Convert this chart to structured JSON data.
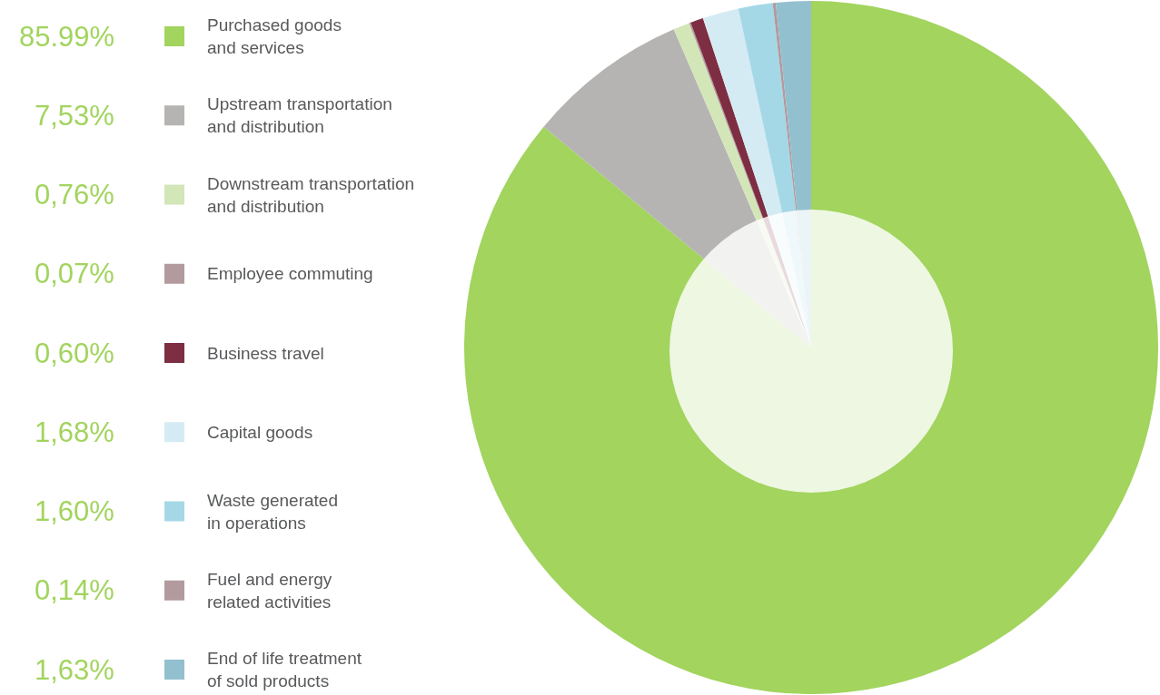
{
  "chart_data": {
    "type": "pie",
    "categories": [
      "Purchased goods\nand services",
      "Upstream transportation\nand distribution",
      "Downstream transportation\nand distribution",
      "Employee commuting",
      "Business travel",
      "Capital goods",
      "Waste generated\nin operations",
      "Fuel and energy\nrelated activities",
      "End of life treatment\nof sold products"
    ],
    "values": [
      85.99,
      7.53,
      0.76,
      0.07,
      0.6,
      1.68,
      1.6,
      0.14,
      1.63
    ],
    "value_labels": [
      "85.99%",
      "7,53%",
      "0,76%",
      "0,07%",
      "0,60%",
      "1,68%",
      "1,60%",
      "0,14%",
      "1,63%"
    ],
    "colors": [
      "#a2d45e",
      "#b5b4b3",
      "#d3e6b8",
      "#b29a9e",
      "#7d2e43",
      "#d5ebf3",
      "#a5d8e6",
      "#b29a9e",
      "#93c0ce"
    ],
    "legend": "left"
  }
}
